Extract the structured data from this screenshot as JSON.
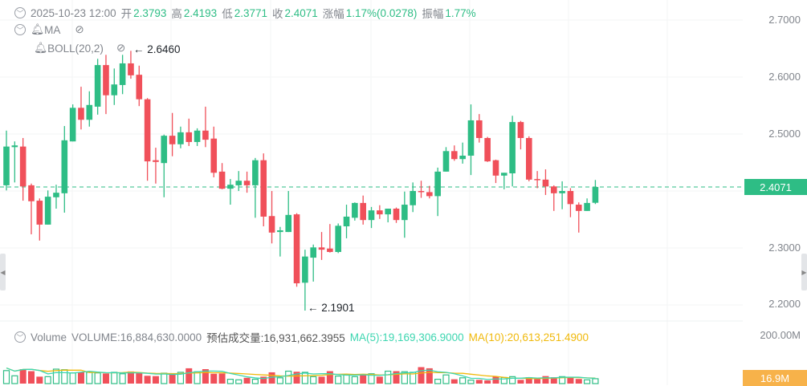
{
  "header": {
    "datetime": "2025-10-23 12:00",
    "open_label": "开",
    "open": "2.3793",
    "high_label": "高",
    "high": "2.4193",
    "low_label": "低",
    "low": "2.3771",
    "close_label": "收",
    "close": "2.4071",
    "change_label": "涨幅",
    "change": "1.17%(0.0278)",
    "amplitude_label": "振幅",
    "amplitude": "1.77%"
  },
  "indicators": {
    "ma": "MA",
    "boll": "BOLL(20,2)"
  },
  "annotations": {
    "max": "← 2.6460",
    "min": "← 2.1901"
  },
  "price_axis": [
    "2.7000",
    "2.6000",
    "2.5000",
    "2.4000",
    "2.3000",
    "2.2000"
  ],
  "current_price": "2.4071",
  "volume": {
    "title": "Volume",
    "volume_text": "VOLUME:16,884,630.0000",
    "estimate_text": "预估成交量:16,931,662.3955",
    "ma5_text": "MA(5):19,169,306.9000",
    "ma10_text": "MA(10):20,613,251.4900",
    "axis_max": "200.00M",
    "current": "16.9M"
  },
  "colors": {
    "up": "#2ebd85",
    "down": "#f0505a",
    "ma5": "#3dd6b0",
    "ma10": "#f0b90b"
  },
  "chart_data": {
    "type": "candlestick",
    "ylim": [
      2.18,
      2.71
    ],
    "candles": [
      [
        2.41,
        2.506,
        2.401,
        2.478
      ],
      [
        2.477,
        2.487,
        2.415,
        2.48
      ],
      [
        2.478,
        2.493,
        2.383,
        2.408
      ],
      [
        2.41,
        2.413,
        2.324,
        2.382
      ],
      [
        2.383,
        2.387,
        2.313,
        2.341
      ],
      [
        2.341,
        2.401,
        2.341,
        2.39
      ],
      [
        2.389,
        2.411,
        2.369,
        2.397
      ],
      [
        2.396,
        2.514,
        2.362,
        2.489
      ],
      [
        2.487,
        2.552,
        2.487,
        2.546
      ],
      [
        2.546,
        2.583,
        2.508,
        2.525
      ],
      [
        2.525,
        2.575,
        2.513,
        2.551
      ],
      [
        2.548,
        2.632,
        2.534,
        2.621
      ],
      [
        2.621,
        2.639,
        2.535,
        2.568
      ],
      [
        2.568,
        2.615,
        2.551,
        2.587
      ],
      [
        2.586,
        2.639,
        2.57,
        2.624
      ],
      [
        2.624,
        2.646,
        2.597,
        2.603
      ],
      [
        2.604,
        2.62,
        2.549,
        2.561
      ],
      [
        2.561,
        2.563,
        2.418,
        2.452
      ],
      [
        2.454,
        2.476,
        2.413,
        2.451
      ],
      [
        2.449,
        2.499,
        2.389,
        2.497
      ],
      [
        2.497,
        2.537,
        2.461,
        2.482
      ],
      [
        2.482,
        2.513,
        2.475,
        2.503
      ],
      [
        2.503,
        2.527,
        2.479,
        2.486
      ],
      [
        2.486,
        2.51,
        2.479,
        2.506
      ],
      [
        2.506,
        2.548,
        2.477,
        2.49
      ],
      [
        2.492,
        2.513,
        2.424,
        2.432
      ],
      [
        2.434,
        2.449,
        2.403,
        2.404
      ],
      [
        2.404,
        2.421,
        2.376,
        2.411
      ],
      [
        2.41,
        2.435,
        2.4,
        2.418
      ],
      [
        2.418,
        2.434,
        2.397,
        2.41
      ],
      [
        2.41,
        2.458,
        2.353,
        2.454
      ],
      [
        2.454,
        2.466,
        2.338,
        2.355
      ],
      [
        2.356,
        2.4,
        2.308,
        2.327
      ],
      [
        2.328,
        2.337,
        2.285,
        2.331
      ],
      [
        2.328,
        2.4,
        2.328,
        2.358
      ],
      [
        2.359,
        2.361,
        2.232,
        2.238
      ],
      [
        2.239,
        2.297,
        2.1901,
        2.285
      ],
      [
        2.283,
        2.306,
        2.241,
        2.301
      ],
      [
        2.301,
        2.328,
        2.279,
        2.297
      ],
      [
        2.299,
        2.342,
        2.292,
        2.293
      ],
      [
        2.293,
        2.343,
        2.291,
        2.339
      ],
      [
        2.338,
        2.376,
        2.317,
        2.355
      ],
      [
        2.353,
        2.38,
        2.348,
        2.379
      ],
      [
        2.379,
        2.392,
        2.341,
        2.349
      ],
      [
        2.349,
        2.372,
        2.335,
        2.366
      ],
      [
        2.366,
        2.375,
        2.351,
        2.359
      ],
      [
        2.359,
        2.369,
        2.345,
        2.369
      ],
      [
        2.369,
        2.371,
        2.344,
        2.349
      ],
      [
        2.349,
        2.399,
        2.318,
        2.376
      ],
      [
        2.375,
        2.415,
        2.363,
        2.4
      ],
      [
        2.4,
        2.418,
        2.388,
        2.398
      ],
      [
        2.398,
        2.409,
        2.387,
        2.391
      ],
      [
        2.391,
        2.441,
        2.356,
        2.434
      ],
      [
        2.434,
        2.477,
        2.434,
        2.47
      ],
      [
        2.47,
        2.48,
        2.453,
        2.456
      ],
      [
        2.456,
        2.485,
        2.448,
        2.462
      ],
      [
        2.462,
        2.552,
        2.428,
        2.524
      ],
      [
        2.524,
        2.535,
        2.485,
        2.493
      ],
      [
        2.493,
        2.495,
        2.451,
        2.452
      ],
      [
        2.454,
        2.455,
        2.414,
        2.427
      ],
      [
        2.427,
        2.432,
        2.403,
        2.432
      ],
      [
        2.431,
        2.532,
        2.408,
        2.521
      ],
      [
        2.521,
        2.523,
        2.473,
        2.493
      ],
      [
        2.493,
        2.496,
        2.417,
        2.42
      ],
      [
        2.421,
        2.435,
        2.405,
        2.419
      ],
      [
        2.42,
        2.438,
        2.393,
        2.408
      ],
      [
        2.408,
        2.41,
        2.365,
        2.396
      ],
      [
        2.396,
        2.417,
        2.368,
        2.4
      ],
      [
        2.4,
        2.405,
        2.354,
        2.377
      ],
      [
        2.376,
        2.38,
        2.327,
        2.365
      ],
      [
        2.365,
        2.387,
        2.365,
        2.379
      ],
      [
        2.3793,
        2.4193,
        2.3771,
        2.4071
      ]
    ],
    "volumes_m": [
      45,
      27,
      50,
      43,
      24,
      24,
      50,
      48,
      37,
      39,
      39,
      37,
      35,
      39,
      34,
      42,
      36,
      27,
      26,
      36,
      34,
      39,
      53,
      41,
      50,
      34,
      35,
      15,
      13,
      20,
      15,
      24,
      39,
      20,
      43,
      41,
      39,
      24,
      24,
      43,
      26,
      30,
      24,
      30,
      34,
      24,
      43,
      43,
      41,
      39,
      57,
      53,
      15,
      30,
      15,
      20,
      12,
      13,
      11,
      24,
      21,
      24,
      13,
      22,
      16,
      26,
      22,
      24,
      22,
      16,
      13,
      16.9
    ]
  }
}
